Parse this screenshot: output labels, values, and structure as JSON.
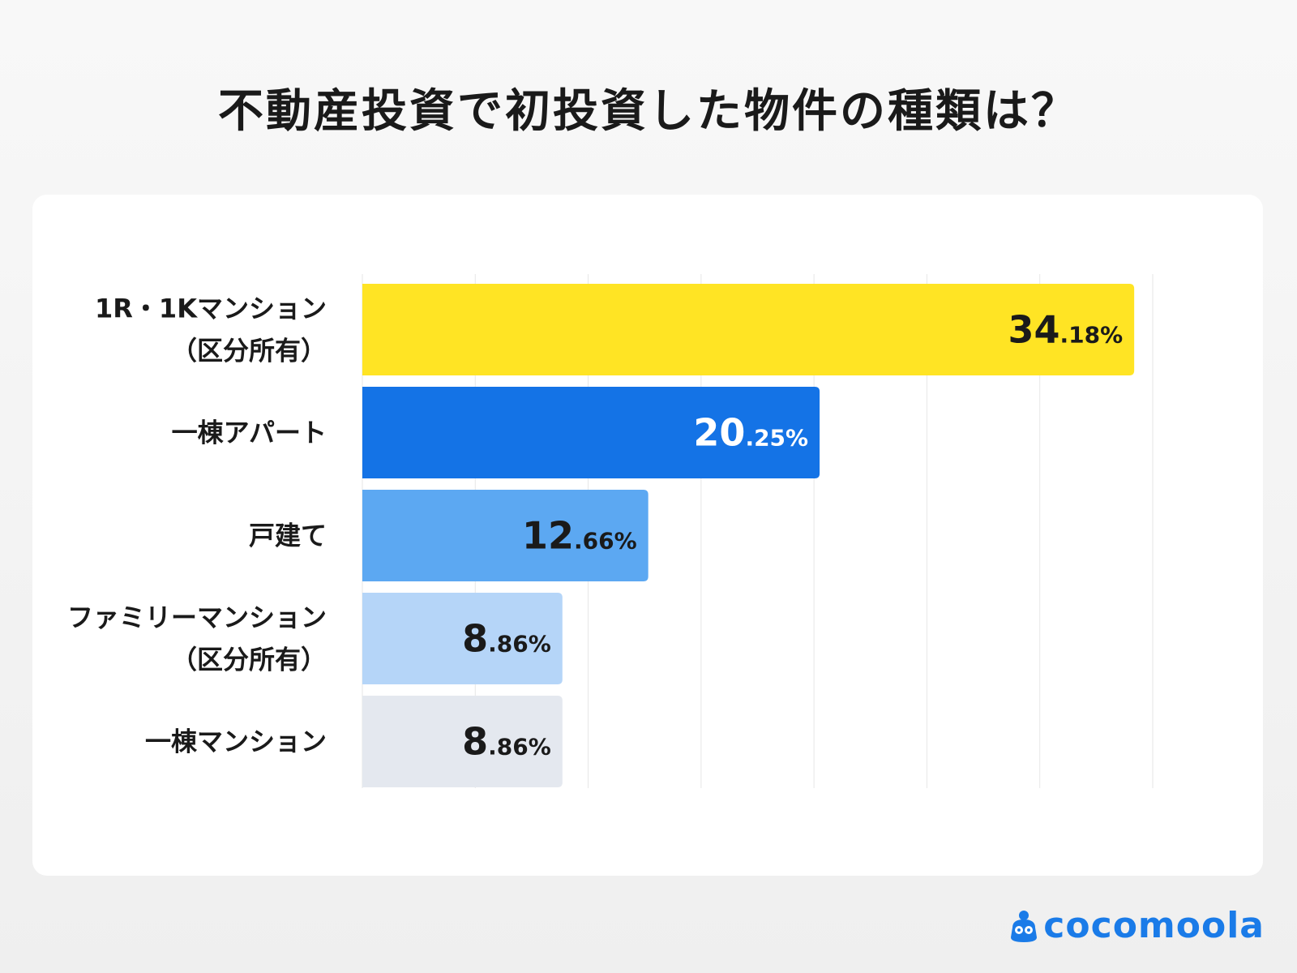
{
  "title": "不動産投資で初投資した物件の種類は？",
  "logo": "cocomoola",
  "chart_data": {
    "type": "bar",
    "orientation": "horizontal",
    "title": "不動産投資で初投資した物件の種類は？",
    "categories": [
      [
        "1R・1Kマンション",
        "（区分所有）"
      ],
      [
        "一棟アパート"
      ],
      [
        "戸建て"
      ],
      [
        "ファミリーマンション",
        "（区分所有）"
      ],
      [
        "一棟マンション"
      ]
    ],
    "values": [
      34.18,
      20.25,
      12.66,
      8.86,
      8.86
    ],
    "labels": [
      "34.18%",
      "20.25%",
      "12.66%",
      "8.86%",
      "8.86%"
    ],
    "colors": [
      "#ffe424",
      "#1473e6",
      "#5ca8f2",
      "#b5d5f8",
      "#e4e8ef"
    ],
    "label_colors": [
      "#1a1a1a",
      "#ffffff",
      "#1a1a1a",
      "#1a1a1a",
      "#1a1a1a"
    ],
    "xlim": [
      0,
      35
    ],
    "grid": true,
    "gridline_step": 5
  }
}
